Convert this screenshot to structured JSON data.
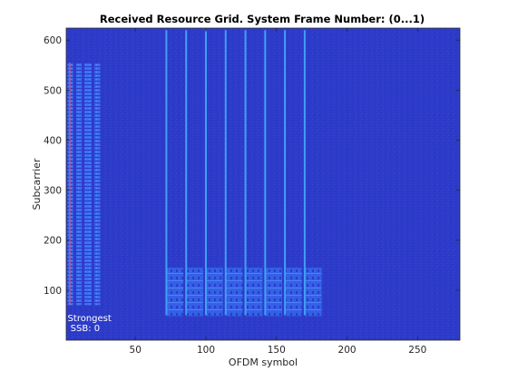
{
  "chart_data": {
    "type": "heatmap",
    "title": "Received Resource Grid. System Frame Number: (0...1)",
    "xlabel": "OFDM symbol",
    "ylabel": "Subcarrier",
    "xlim": [
      1,
      280
    ],
    "ylim": [
      0,
      624
    ],
    "xticks": [
      50,
      100,
      150,
      200,
      250
    ],
    "yticks": [
      100,
      200,
      300,
      400,
      500,
      600
    ],
    "grid": false,
    "colors": {
      "background": "#2d3bc9",
      "ssb_region": "#3a6ef0",
      "pilot_line": "#3fa0f5",
      "ssb_column_highlight": "#d9536b",
      "annotation_text": "#ffffff"
    },
    "ssb_bursts": [
      {
        "x_start": 2,
        "x_end": 6,
        "y_start": 70,
        "y_end": 555,
        "strongest": true
      },
      {
        "x_start": 8,
        "x_end": 12,
        "y_start": 70,
        "y_end": 555
      },
      {
        "x_start": 14,
        "x_end": 19,
        "y_start": 70,
        "y_end": 555
      },
      {
        "x_start": 21,
        "x_end": 25,
        "y_start": 70,
        "y_end": 555
      }
    ],
    "pdcch_lines": [
      72,
      86,
      100,
      114,
      128,
      142,
      156,
      170
    ],
    "pdcch_y_range": [
      50,
      620
    ],
    "pdsch_blocks": [
      {
        "x_start": 72,
        "x_end": 84,
        "y_start": 48,
        "y_end": 145
      },
      {
        "x_start": 86,
        "x_end": 98,
        "y_start": 48,
        "y_end": 145
      },
      {
        "x_start": 100,
        "x_end": 112,
        "y_start": 48,
        "y_end": 145
      },
      {
        "x_start": 114,
        "x_end": 126,
        "y_start": 48,
        "y_end": 145
      },
      {
        "x_start": 128,
        "x_end": 140,
        "y_start": 48,
        "y_end": 145
      },
      {
        "x_start": 142,
        "x_end": 154,
        "y_start": 48,
        "y_end": 145
      },
      {
        "x_start": 156,
        "x_end": 168,
        "y_start": 48,
        "y_end": 145
      },
      {
        "x_start": 170,
        "x_end": 182,
        "y_start": 48,
        "y_end": 145
      }
    ],
    "annotations": [
      {
        "text": "Strongest",
        "x": 2,
        "y": 38
      },
      {
        "text": "SSB: 0",
        "x": 4,
        "y": 18
      }
    ]
  }
}
